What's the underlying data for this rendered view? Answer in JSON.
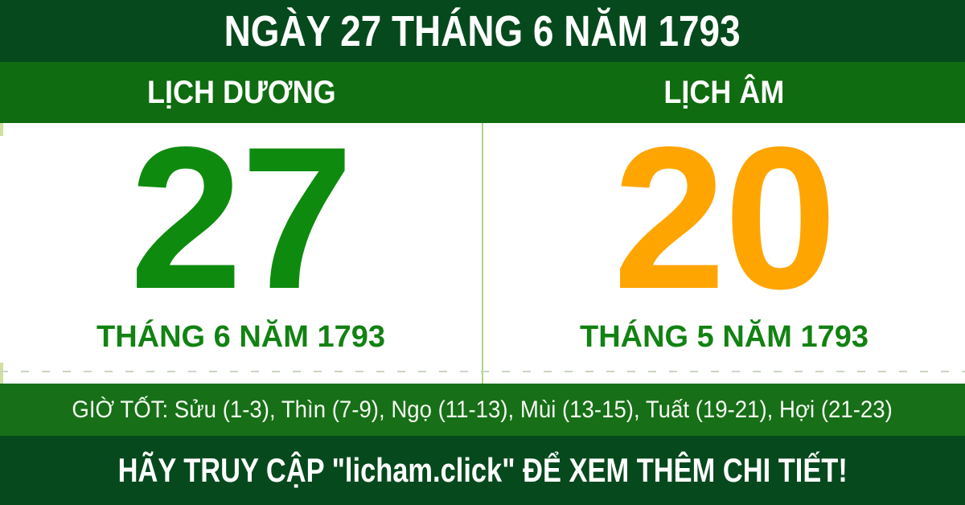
{
  "header": {
    "title": "NGÀY 27 THÁNG 6 NĂM 1793"
  },
  "tabs": {
    "solar_label": "LỊCH DƯƠNG",
    "lunar_label": "LỊCH ÂM"
  },
  "solar": {
    "day": "27",
    "month_year": "THÁNG 6 NĂM 1793"
  },
  "lunar": {
    "day": "20",
    "month_year": "THÁNG 5 NĂM 1793"
  },
  "good_hours": {
    "label": "GIỜ TỐT:",
    "slots": [
      "Sửu (1-3)",
      "Thìn (7-9)",
      "Ngọ (11-13)",
      "Mùi (13-15)",
      "Tuất (19-21)",
      "Hợi (21-23)"
    ],
    "text": "GIỜ TỐT: Sửu (1-3), Thìn (7-9), Ngọ (11-13), Mùi (13-15), Tuất (19-21), Hợi (21-23)"
  },
  "footer": {
    "prefix": "HÃY TRUY CẬP ",
    "site": "\"licham.click\"",
    "suffix": " ĐỂ XEM THÊM CHI TIẾT!"
  },
  "colors": {
    "header_dark_green": "#05491d",
    "tabs_green": "#0f6c10",
    "hours_bar_green": "#176f17",
    "footer_dark_green": "#05491d",
    "solar_day_green": "#0e8b0e",
    "lunar_day_orange": "#ffa502",
    "month_text_green": "#128212",
    "divider_light_green": "#aed383",
    "text_white": "#ffffff"
  }
}
